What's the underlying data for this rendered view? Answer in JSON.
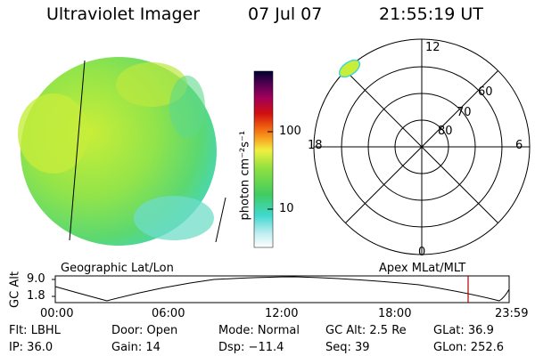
{
  "header": {
    "title": "Ultraviolet Imager",
    "date": "07 Jul 07",
    "time": "21:55:19 UT"
  },
  "colorbar": {
    "unit_label": "photon cm⁻²s⁻¹",
    "ticks": [
      "100",
      "10"
    ]
  },
  "polar_plot": {
    "mlt_labels": [
      "12",
      "18",
      "6",
      "0"
    ],
    "lat_labels": [
      "60",
      "70",
      "80"
    ]
  },
  "timeline": {
    "left_label": "Geographic Lat/Lon",
    "right_label": "Apex MLat/MLT",
    "y_axis_label": "GC Alt",
    "y_ticks": [
      "9.0",
      "1.8"
    ],
    "x_ticks": [
      "00:00",
      "06:00",
      "12:00",
      "18:00",
      "23:59"
    ]
  },
  "info": {
    "flt": "Flt: LBHL",
    "ip": "IP: 36.0",
    "door": "Door: Open",
    "gain": "Gain: 14",
    "mode": "Mode: Normal",
    "dsp": "Dsp:  −11.4",
    "gc_alt": "GC Alt: 2.5 Re",
    "seq": "Seq: 39",
    "glat": "GLat:  36.9",
    "glon": "GLon: 252.6"
  },
  "colors": {
    "disk_green": "#7fe04a",
    "disk_yellow": "#c8ee3a",
    "disk_cyan": "#40d8d0",
    "marker_red": "#b00000"
  }
}
